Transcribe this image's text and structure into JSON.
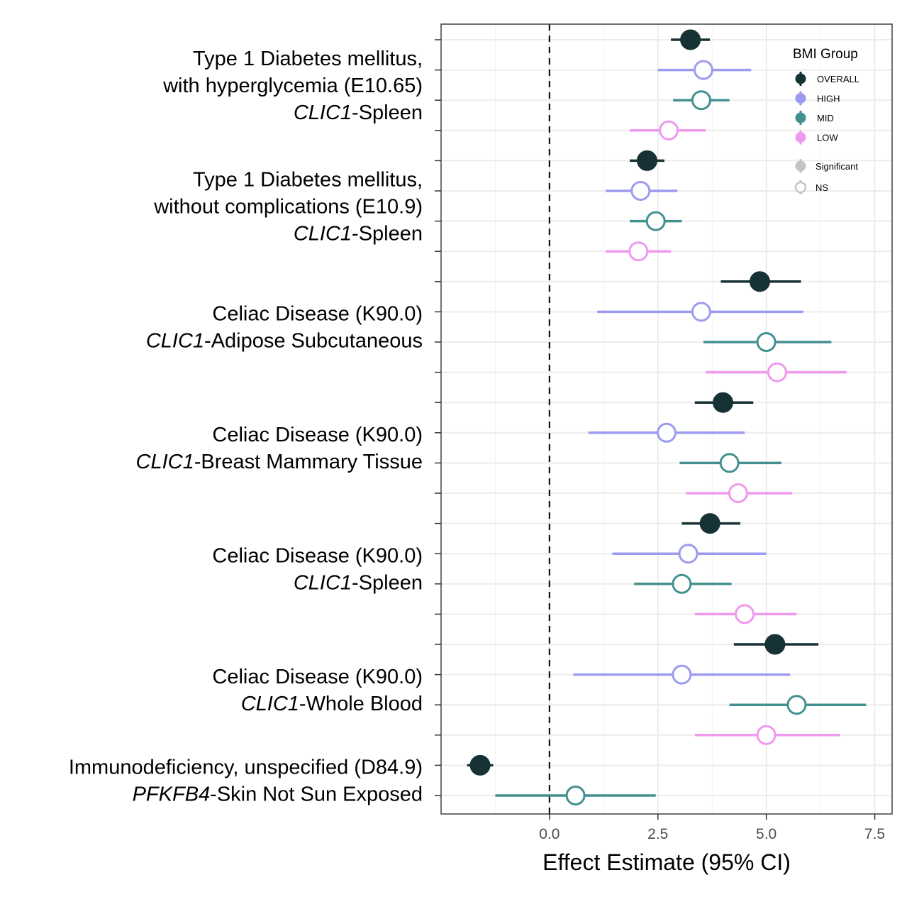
{
  "chart_data": {
    "type": "scatter",
    "subtype": "forest-plot",
    "xlabel": "Effect Estimate (95% CI)",
    "xlim": [
      -2.5,
      7.9
    ],
    "x_ticks": [
      "0.0",
      "2.5",
      "5.0",
      "7.5"
    ],
    "x_tick_values": [
      0,
      2.5,
      5,
      7.5
    ],
    "reference_line": 0,
    "grid": true,
    "colors": {
      "OVERALL": "#163235",
      "HIGH": "#9c9bf0",
      "MID": "#43918f",
      "LOW": "#ef99ef"
    },
    "groups": [
      {
        "label_lines": [
          {
            "text": "Type 1 Diabetes mellitus,",
            "italic": false
          },
          {
            "text": "with hyperglycemia (E10.65)",
            "italic": false
          },
          {
            "gene": "CLIC1",
            "tissue": "-Spleen"
          }
        ],
        "rows": [
          {
            "bmi": "OVERALL",
            "est": 3.25,
            "lo": 2.8,
            "hi": 3.7,
            "sig": true
          },
          {
            "bmi": "HIGH",
            "est": 3.55,
            "lo": 2.5,
            "hi": 4.65,
            "sig": false
          },
          {
            "bmi": "MID",
            "est": 3.5,
            "lo": 2.85,
            "hi": 4.15,
            "sig": false
          },
          {
            "bmi": "LOW",
            "est": 2.75,
            "lo": 1.85,
            "hi": 3.6,
            "sig": false
          }
        ]
      },
      {
        "label_lines": [
          {
            "text": "Type 1 Diabetes mellitus,",
            "italic": false
          },
          {
            "text": "without complications (E10.9)",
            "italic": false
          },
          {
            "gene": "CLIC1",
            "tissue": "-Spleen"
          }
        ],
        "rows": [
          {
            "bmi": "OVERALL",
            "est": 2.25,
            "lo": 1.85,
            "hi": 2.65,
            "sig": true
          },
          {
            "bmi": "HIGH",
            "est": 2.1,
            "lo": 1.3,
            "hi": 2.95,
            "sig": false
          },
          {
            "bmi": "MID",
            "est": 2.45,
            "lo": 1.85,
            "hi": 3.05,
            "sig": false
          },
          {
            "bmi": "LOW",
            "est": 2.05,
            "lo": 1.3,
            "hi": 2.8,
            "sig": false
          }
        ]
      },
      {
        "label_lines": [
          {
            "text": "Celiac Disease (K90.0)",
            "italic": false
          },
          {
            "gene": "CLIC1",
            "tissue": "-Adipose Subcutaneous"
          }
        ],
        "rows": [
          {
            "bmi": "OVERALL",
            "est": 4.85,
            "lo": 3.95,
            "hi": 5.8,
            "sig": true
          },
          {
            "bmi": "HIGH",
            "est": 3.5,
            "lo": 1.1,
            "hi": 5.85,
            "sig": false
          },
          {
            "bmi": "MID",
            "est": 5.0,
            "lo": 3.55,
            "hi": 6.5,
            "sig": false
          },
          {
            "bmi": "LOW",
            "est": 5.25,
            "lo": 3.6,
            "hi": 6.85,
            "sig": false
          }
        ]
      },
      {
        "label_lines": [
          {
            "text": "Celiac Disease (K90.0)",
            "italic": false
          },
          {
            "gene": "CLIC1",
            "tissue": "-Breast Mammary Tissue"
          }
        ],
        "rows": [
          {
            "bmi": "OVERALL",
            "est": 4.0,
            "lo": 3.35,
            "hi": 4.7,
            "sig": true
          },
          {
            "bmi": "HIGH",
            "est": 2.7,
            "lo": 0.9,
            "hi": 4.5,
            "sig": false
          },
          {
            "bmi": "MID",
            "est": 4.15,
            "lo": 3.0,
            "hi": 5.35,
            "sig": false
          },
          {
            "bmi": "LOW",
            "est": 4.35,
            "lo": 3.15,
            "hi": 5.6,
            "sig": false
          }
        ]
      },
      {
        "label_lines": [
          {
            "text": "Celiac Disease (K90.0)",
            "italic": false
          },
          {
            "gene": "CLIC1",
            "tissue": "-Spleen"
          }
        ],
        "rows": [
          {
            "bmi": "OVERALL",
            "est": 3.7,
            "lo": 3.05,
            "hi": 4.4,
            "sig": true
          },
          {
            "bmi": "HIGH",
            "est": 3.2,
            "lo": 1.45,
            "hi": 5.0,
            "sig": false
          },
          {
            "bmi": "MID",
            "est": 3.05,
            "lo": 1.95,
            "hi": 4.2,
            "sig": false
          },
          {
            "bmi": "LOW",
            "est": 4.5,
            "lo": 3.35,
            "hi": 5.7,
            "sig": false
          }
        ]
      },
      {
        "label_lines": [
          {
            "text": "Celiac Disease (K90.0)",
            "italic": false
          },
          {
            "gene": "CLIC1",
            "tissue": "-Whole Blood"
          }
        ],
        "rows": [
          {
            "bmi": "OVERALL",
            "est": 5.2,
            "lo": 4.25,
            "hi": 6.2,
            "sig": true
          },
          {
            "bmi": "HIGH",
            "est": 3.05,
            "lo": 0.55,
            "hi": 5.55,
            "sig": false
          },
          {
            "bmi": "MID",
            "est": 5.7,
            "lo": 4.15,
            "hi": 7.3,
            "sig": false
          },
          {
            "bmi": "LOW",
            "est": 5.0,
            "lo": 3.35,
            "hi": 6.7,
            "sig": false
          }
        ]
      },
      {
        "label_lines": [
          {
            "text": "Immunodeficiency, unspecified (D84.9)",
            "italic": false
          },
          {
            "gene": "PFKFB4",
            "tissue": "-Skin Not Sun Exposed"
          }
        ],
        "rows": [
          {
            "bmi": "OVERALL",
            "est": -1.6,
            "lo": -1.9,
            "hi": -1.3,
            "sig": true
          },
          {
            "bmi": "MID",
            "est": 0.6,
            "lo": -1.25,
            "hi": 2.45,
            "sig": false
          }
        ]
      }
    ],
    "legend": {
      "title": "BMI Group",
      "placement": "top-right",
      "groups": [
        "OVERALL",
        "HIGH",
        "MID",
        "LOW"
      ],
      "significance": [
        "Significant",
        "NS"
      ]
    }
  }
}
